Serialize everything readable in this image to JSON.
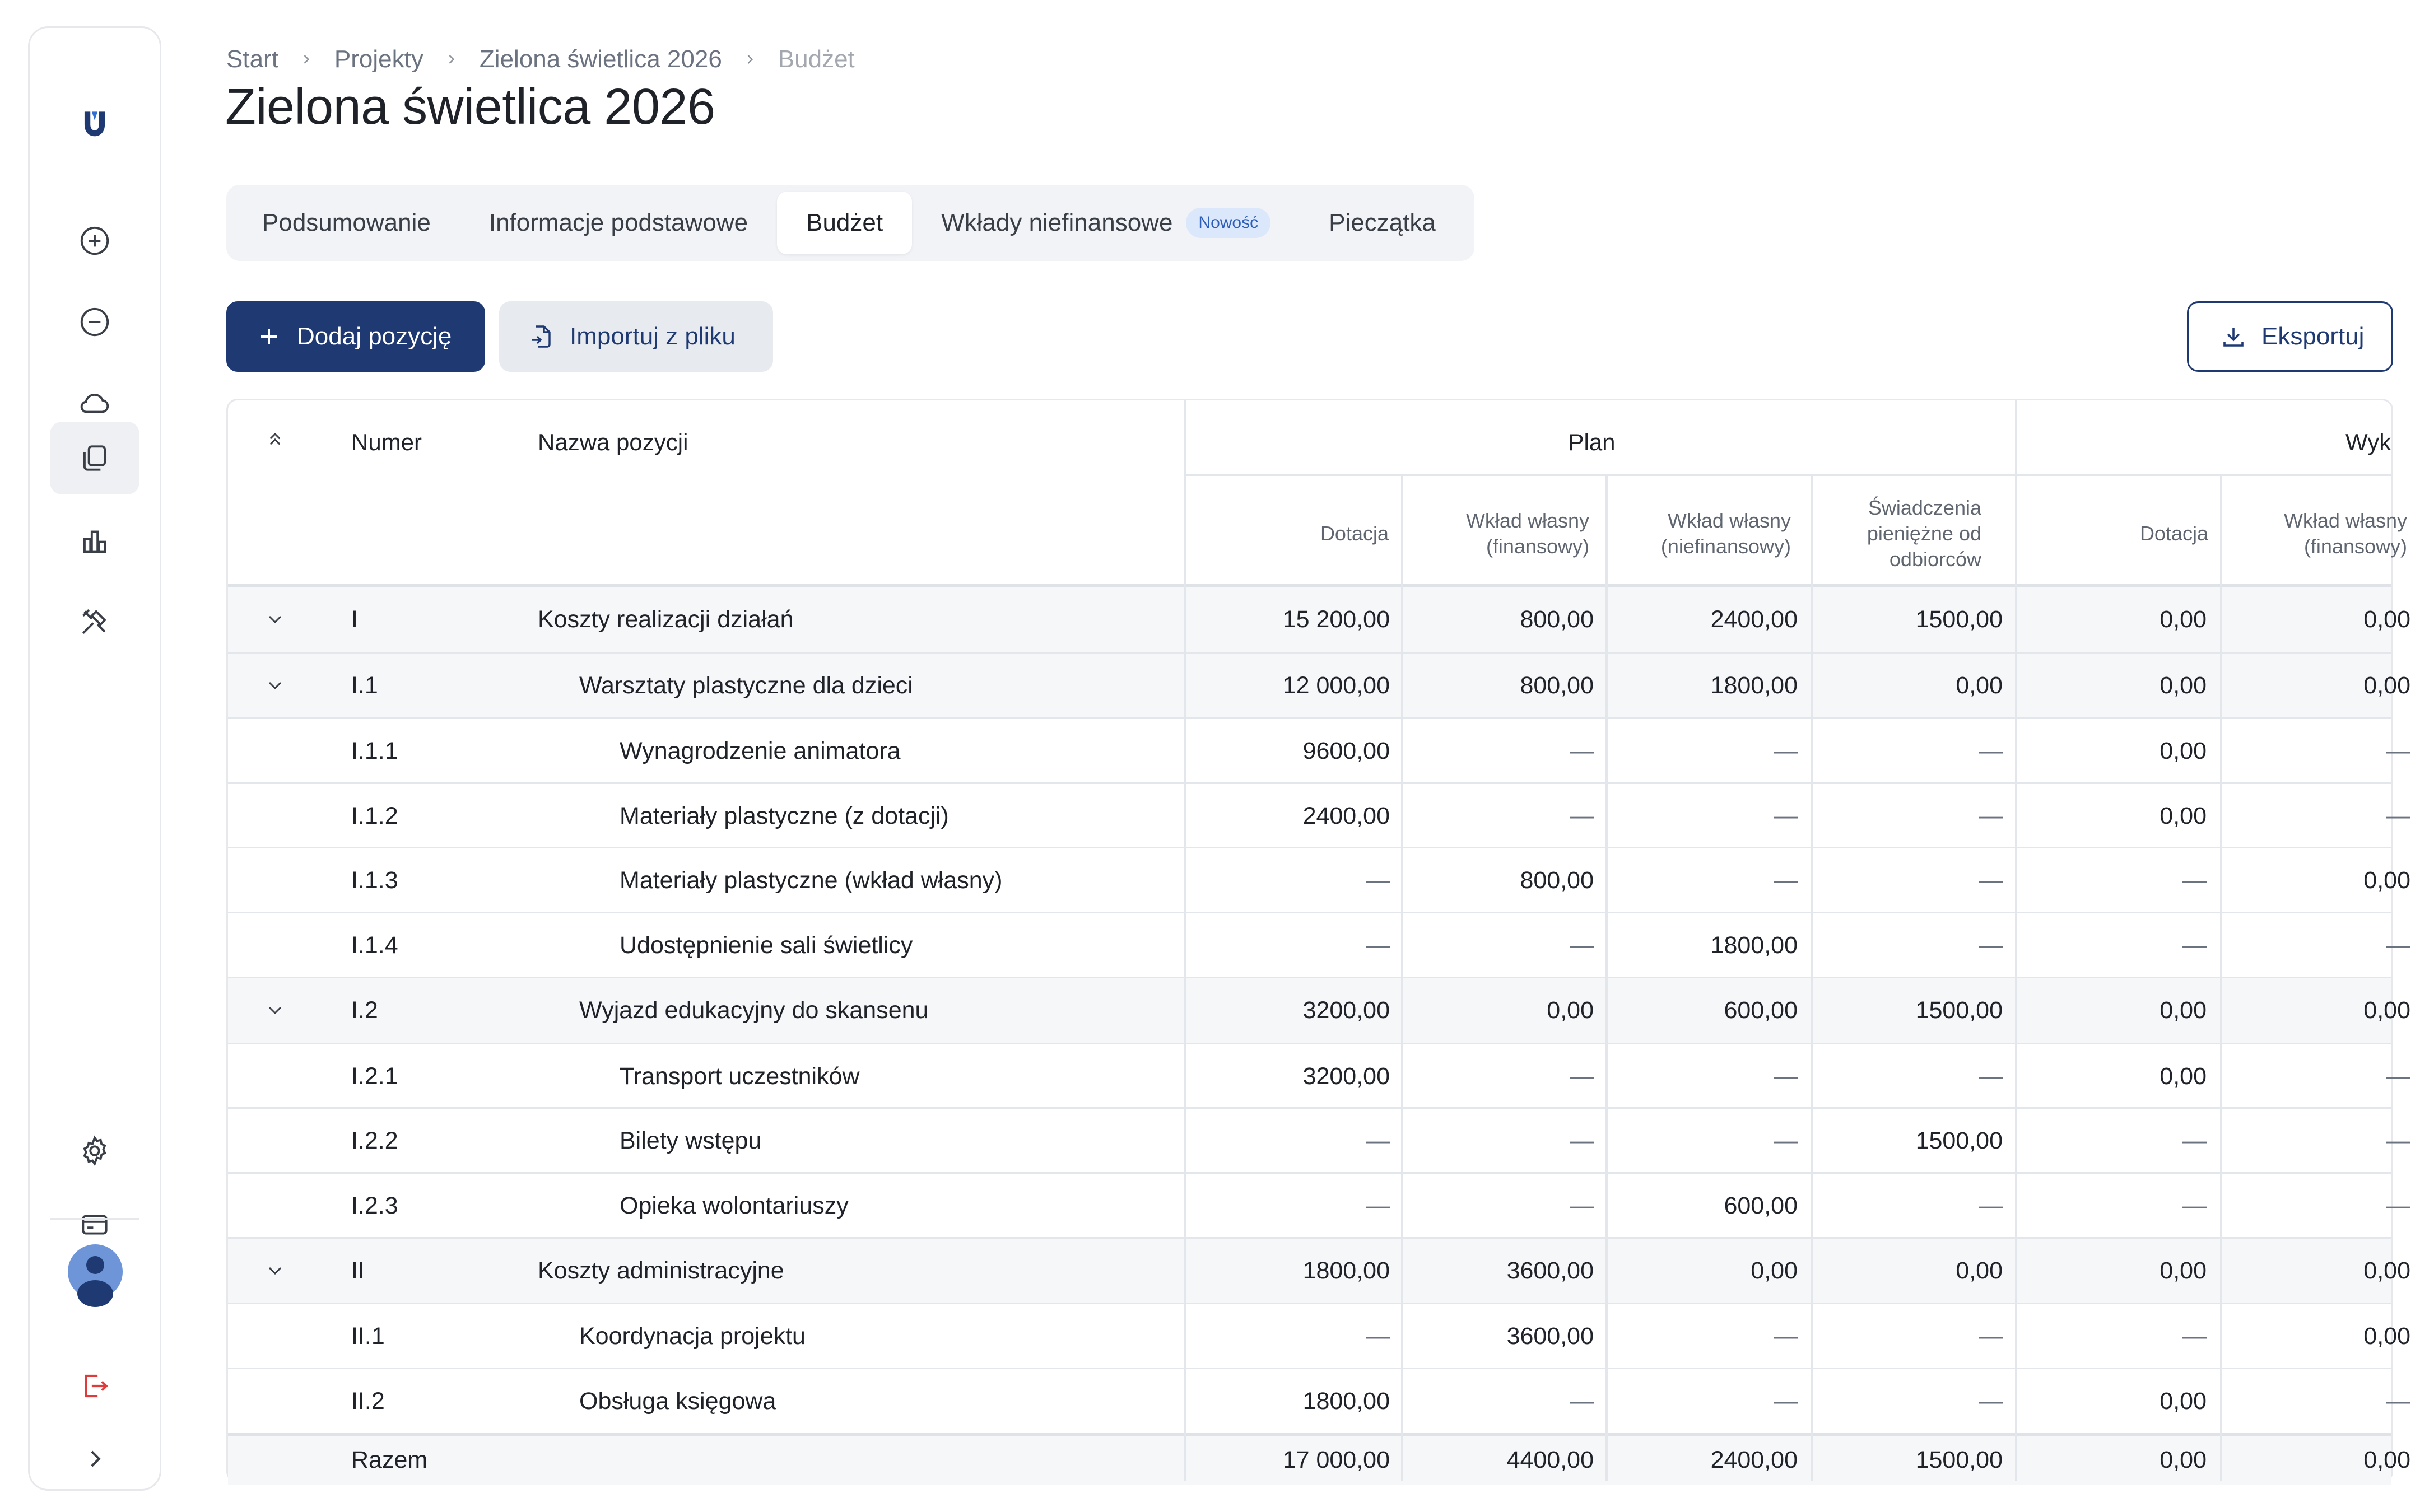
{
  "breadcrumb": {
    "items": [
      "Start",
      "Projekty",
      "Zielona świetlica 2026"
    ],
    "current": "Budżet"
  },
  "page_title": "Zielona świetlica 2026",
  "tabs": [
    {
      "label": "Podsumowanie",
      "active": false
    },
    {
      "label": "Informacje podstawowe",
      "active": false
    },
    {
      "label": "Budżet",
      "active": true
    },
    {
      "label": "Wkłady niefinansowe",
      "active": false,
      "badge": "Nowość"
    },
    {
      "label": "Pieczątka",
      "active": false
    }
  ],
  "actions": {
    "add_label": "Dodaj pozycję",
    "import_label": "Importuj z pliku",
    "export_label": "Eksportuj"
  },
  "colors": {
    "primary": "#1f3a73",
    "accent_badge_bg": "#dbe8fb",
    "logout_red": "#e03a3a"
  },
  "sidebar": {
    "icons": [
      "logo-icon",
      "plus-circle-icon",
      "minus-circle-icon",
      "cloud-icon",
      "documents-icon",
      "bar-chart-icon",
      "tools-icon",
      "gear-icon",
      "card-icon",
      "avatar",
      "logout-icon",
      "chevron-right-icon"
    ],
    "active": "documents-icon"
  },
  "table": {
    "headers": {
      "numer": "Numer",
      "nazwa": "Nazwa pozycji",
      "plan": "Plan",
      "wyk": "Wyk",
      "plan_cols": [
        "Dotacja",
        "Wkład własny (finansowy)",
        "Wkład własny (niefinansowy)",
        "Świadczenia pieniężne od odbiorców"
      ],
      "wyk_cols": [
        "Dotacja",
        "Wkład własny (finansowy)"
      ]
    },
    "rows": [
      {
        "level": 0,
        "group": true,
        "expand": true,
        "num": "I",
        "name": "Koszty realizacji działań",
        "vals": [
          "15 200,00",
          "800,00",
          "2400,00",
          "1500,00",
          "0,00",
          "0,00"
        ]
      },
      {
        "level": 1,
        "group": true,
        "expand": true,
        "num": "I.1",
        "name": "Warsztaty plastyczne dla dzieci",
        "vals": [
          "12 000,00",
          "800,00",
          "1800,00",
          "0,00",
          "0,00",
          "0,00"
        ]
      },
      {
        "level": 2,
        "group": false,
        "expand": false,
        "num": "I.1.1",
        "name": "Wynagrodzenie animatora",
        "vals": [
          "9600,00",
          "—",
          "—",
          "—",
          "0,00",
          "—"
        ]
      },
      {
        "level": 2,
        "group": false,
        "expand": false,
        "num": "I.1.2",
        "name": "Materiały plastyczne (z dotacji)",
        "vals": [
          "2400,00",
          "—",
          "—",
          "—",
          "0,00",
          "—"
        ]
      },
      {
        "level": 2,
        "group": false,
        "expand": false,
        "num": "I.1.3",
        "name": "Materiały plastyczne (wkład własny)",
        "vals": [
          "—",
          "800,00",
          "—",
          "—",
          "—",
          "0,00"
        ]
      },
      {
        "level": 2,
        "group": false,
        "expand": false,
        "num": "I.1.4",
        "name": "Udostępnienie sali świetlicy",
        "vals": [
          "—",
          "—",
          "1800,00",
          "—",
          "—",
          "—"
        ]
      },
      {
        "level": 1,
        "group": true,
        "expand": true,
        "num": "I.2",
        "name": "Wyjazd edukacyjny do skansenu",
        "vals": [
          "3200,00",
          "0,00",
          "600,00",
          "1500,00",
          "0,00",
          "0,00"
        ]
      },
      {
        "level": 2,
        "group": false,
        "expand": false,
        "num": "I.2.1",
        "name": "Transport uczestników",
        "vals": [
          "3200,00",
          "—",
          "—",
          "—",
          "0,00",
          "—"
        ]
      },
      {
        "level": 2,
        "group": false,
        "expand": false,
        "num": "I.2.2",
        "name": "Bilety wstępu",
        "vals": [
          "—",
          "—",
          "—",
          "1500,00",
          "—",
          "—"
        ]
      },
      {
        "level": 2,
        "group": false,
        "expand": false,
        "num": "I.2.3",
        "name": "Opieka wolontariuszy",
        "vals": [
          "—",
          "—",
          "600,00",
          "—",
          "—",
          "—"
        ]
      },
      {
        "level": 0,
        "group": true,
        "expand": true,
        "num": "II",
        "name": "Koszty administracyjne",
        "vals": [
          "1800,00",
          "3600,00",
          "0,00",
          "0,00",
          "0,00",
          "0,00"
        ]
      },
      {
        "level": 1,
        "group": false,
        "expand": false,
        "num": "II.1",
        "name": "Koordynacja projektu",
        "vals": [
          "—",
          "3600,00",
          "—",
          "—",
          "—",
          "0,00"
        ]
      },
      {
        "level": 1,
        "group": false,
        "expand": false,
        "num": "II.2",
        "name": "Obsługa księgowa",
        "vals": [
          "1800,00",
          "—",
          "—",
          "—",
          "0,00",
          "—"
        ]
      }
    ],
    "total": {
      "label": "Razem",
      "vals": [
        "17 000,00",
        "4400,00",
        "2400,00",
        "1500,00",
        "0,00",
        "0,00"
      ]
    }
  }
}
